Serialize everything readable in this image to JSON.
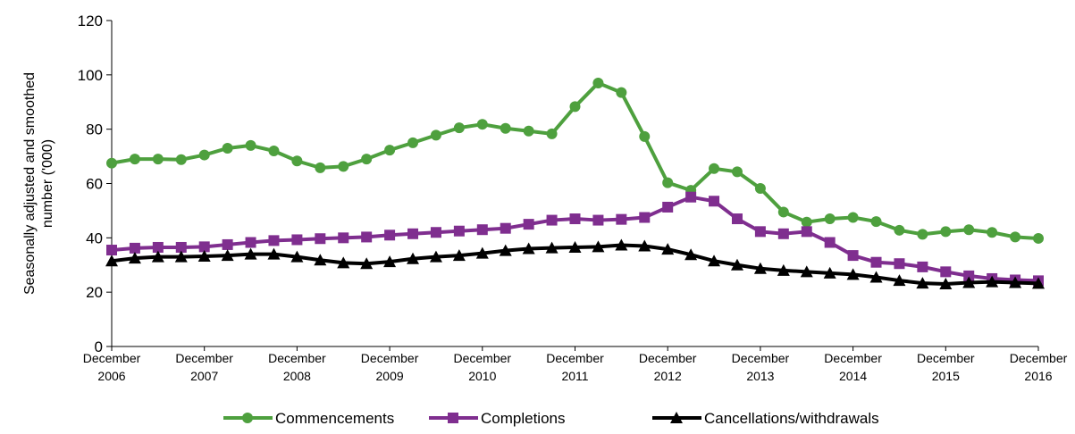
{
  "chart_data": {
    "type": "line",
    "ylabel": [
      "Seasonally adjusted and smoothed",
      "number ('000)"
    ],
    "categories": [
      "December 2006",
      null,
      null,
      null,
      "December 2007",
      null,
      null,
      null,
      "December 2008",
      null,
      null,
      null,
      "December 2009",
      null,
      null,
      null,
      "December 2010",
      null,
      null,
      null,
      "December 2011",
      null,
      null,
      null,
      "December 2012",
      null,
      null,
      null,
      "December 2013",
      null,
      null,
      null,
      "December 2014",
      null,
      null,
      null,
      "December 2015",
      null,
      null,
      null,
      "December 2016"
    ],
    "ylim": [
      0,
      120
    ],
    "yticks": [
      0,
      20,
      40,
      60,
      80,
      100,
      120
    ],
    "grid": false,
    "legend": "bottom",
    "series": [
      {
        "name": "Commencements",
        "color": "#4ea03e",
        "marker": "circle",
        "values": [
          67.5,
          69,
          69,
          68.8,
          70.5,
          73,
          74,
          72,
          68.3,
          65.8,
          66.3,
          69,
          72.3,
          75,
          77.8,
          80.5,
          81.8,
          80.3,
          79.3,
          78.3,
          88.3,
          97,
          93.5,
          77.3,
          60.3,
          57.5,
          65.5,
          64.3,
          58.2,
          49.5,
          45.8,
          47,
          47.5,
          46,
          42.8,
          41.3,
          42.3,
          43,
          42,
          40.3,
          39.8
        ]
      },
      {
        "name": "Completions",
        "color": "#7f2e8f",
        "marker": "square",
        "values": [
          35.5,
          36.2,
          36.5,
          36.5,
          36.7,
          37.5,
          38.3,
          39,
          39.3,
          39.7,
          40,
          40.3,
          41,
          41.5,
          42,
          42.5,
          43,
          43.5,
          45,
          46.5,
          47,
          46.5,
          46.8,
          47.5,
          51.3,
          55,
          53.5,
          47,
          42.3,
          41.5,
          42.3,
          38.3,
          33.5,
          31,
          30.5,
          29.3,
          27.5,
          26,
          25,
          24.5,
          24.2
        ]
      },
      {
        "name": "Cancellations/withdrawals",
        "color": "#000000",
        "marker": "triangle",
        "values": [
          31.5,
          32.5,
          33,
          33,
          33.2,
          33.5,
          34,
          34,
          33,
          31.8,
          30.8,
          30.5,
          31.2,
          32.3,
          33,
          33.5,
          34.3,
          35.3,
          36,
          36.3,
          36.5,
          36.7,
          37.3,
          37,
          35.8,
          33.8,
          31.5,
          30,
          28.7,
          28,
          27.5,
          27,
          26.5,
          25.5,
          24.3,
          23.3,
          23,
          23.5,
          23.8,
          23.5,
          23.2
        ]
      }
    ]
  }
}
